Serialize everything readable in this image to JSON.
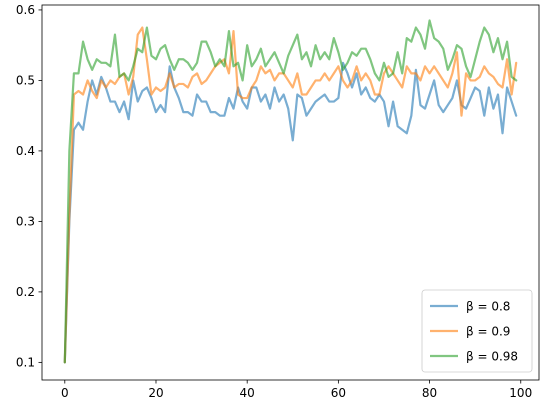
{
  "chart_data": {
    "type": "line",
    "title": "",
    "xlabel": "",
    "ylabel": "",
    "xlim": [
      -5,
      104
    ],
    "ylim": [
      0.075,
      0.607
    ],
    "xticks": [
      0,
      20,
      40,
      60,
      80,
      100
    ],
    "yticks": [
      0.1,
      0.2,
      0.3,
      0.4,
      0.5,
      0.6
    ],
    "xtick_labels": [
      "0",
      "20",
      "40",
      "60",
      "80",
      "100"
    ],
    "ytick_labels": [
      "0.1",
      "0.2",
      "0.3",
      "0.4",
      "0.5",
      "0.6"
    ],
    "grid": false,
    "legend_position": "lower-right",
    "series": [
      {
        "name": "β = 0.8",
        "color": "#1f77b4",
        "x": [
          0,
          1,
          2,
          3,
          4,
          5,
          6,
          7,
          8,
          9,
          10,
          11,
          12,
          13,
          14,
          15,
          16,
          17,
          18,
          19,
          20,
          21,
          22,
          23,
          24,
          25,
          26,
          27,
          28,
          29,
          30,
          31,
          32,
          33,
          34,
          35,
          36,
          37,
          38,
          39,
          40,
          41,
          42,
          43,
          44,
          45,
          46,
          47,
          48,
          49,
          50,
          51,
          52,
          53,
          54,
          55,
          56,
          57,
          58,
          59,
          60,
          61,
          62,
          63,
          64,
          65,
          66,
          67,
          68,
          69,
          70,
          71,
          72,
          73,
          74,
          75,
          76,
          77,
          78,
          79,
          80,
          81,
          82,
          83,
          84,
          85,
          86,
          87,
          88,
          89,
          90,
          91,
          92,
          93,
          94,
          95,
          96,
          97,
          98,
          99
        ],
        "values": [
          0.1,
          0.3,
          0.43,
          0.44,
          0.43,
          0.47,
          0.5,
          0.48,
          0.505,
          0.49,
          0.47,
          0.47,
          0.455,
          0.47,
          0.445,
          0.5,
          0.47,
          0.485,
          0.49,
          0.475,
          0.455,
          0.465,
          0.455,
          0.52,
          0.49,
          0.475,
          0.455,
          0.455,
          0.45,
          0.48,
          0.47,
          0.47,
          0.455,
          0.455,
          0.45,
          0.45,
          0.475,
          0.46,
          0.49,
          0.47,
          0.46,
          0.49,
          0.49,
          0.47,
          0.48,
          0.46,
          0.49,
          0.47,
          0.48,
          0.46,
          0.415,
          0.48,
          0.475,
          0.45,
          0.46,
          0.47,
          0.475,
          0.48,
          0.47,
          0.47,
          0.475,
          0.525,
          0.51,
          0.49,
          0.51,
          0.48,
          0.49,
          0.475,
          0.47,
          0.48,
          0.47,
          0.435,
          0.47,
          0.435,
          0.43,
          0.425,
          0.45,
          0.515,
          0.465,
          0.46,
          0.48,
          0.5,
          0.465,
          0.455,
          0.465,
          0.475,
          0.5,
          0.465,
          0.46,
          0.475,
          0.49,
          0.485,
          0.45,
          0.49,
          0.46,
          0.48,
          0.425,
          0.49,
          0.47,
          0.45
        ]
      },
      {
        "name": "β = 0.9",
        "color": "#ff7f0e",
        "x": [
          0,
          1,
          2,
          3,
          4,
          5,
          6,
          7,
          8,
          9,
          10,
          11,
          12,
          13,
          14,
          15,
          16,
          17,
          18,
          19,
          20,
          21,
          22,
          23,
          24,
          25,
          26,
          27,
          28,
          29,
          30,
          31,
          32,
          33,
          34,
          35,
          36,
          37,
          38,
          39,
          40,
          41,
          42,
          43,
          44,
          45,
          46,
          47,
          48,
          49,
          50,
          51,
          52,
          53,
          54,
          55,
          56,
          57,
          58,
          59,
          60,
          61,
          62,
          63,
          64,
          65,
          66,
          67,
          68,
          69,
          70,
          71,
          72,
          73,
          74,
          75,
          76,
          77,
          78,
          79,
          80,
          81,
          82,
          83,
          84,
          85,
          86,
          87,
          88,
          89,
          90,
          91,
          92,
          93,
          94,
          95,
          96,
          97,
          98,
          99
        ],
        "values": [
          0.1,
          0.31,
          0.48,
          0.485,
          0.48,
          0.5,
          0.485,
          0.475,
          0.5,
          0.49,
          0.5,
          0.495,
          0.505,
          0.51,
          0.48,
          0.505,
          0.565,
          0.575,
          0.53,
          0.48,
          0.49,
          0.485,
          0.49,
          0.51,
          0.49,
          0.495,
          0.495,
          0.49,
          0.505,
          0.51,
          0.495,
          0.5,
          0.51,
          0.52,
          0.525,
          0.53,
          0.51,
          0.57,
          0.48,
          0.475,
          0.475,
          0.49,
          0.5,
          0.52,
          0.51,
          0.515,
          0.5,
          0.51,
          0.51,
          0.5,
          0.49,
          0.51,
          0.48,
          0.48,
          0.49,
          0.5,
          0.5,
          0.51,
          0.5,
          0.51,
          0.52,
          0.5,
          0.49,
          0.5,
          0.52,
          0.5,
          0.51,
          0.5,
          0.48,
          0.48,
          0.51,
          0.52,
          0.51,
          0.5,
          0.49,
          0.52,
          0.51,
          0.51,
          0.5,
          0.52,
          0.51,
          0.52,
          0.51,
          0.5,
          0.49,
          0.51,
          0.54,
          0.45,
          0.51,
          0.5,
          0.5,
          0.505,
          0.52,
          0.51,
          0.505,
          0.495,
          0.49,
          0.53,
          0.48,
          0.525
        ]
      },
      {
        "name": "β = 0.98",
        "color": "#2ca02c",
        "x": [
          0,
          1,
          2,
          3,
          4,
          5,
          6,
          7,
          8,
          9,
          10,
          11,
          12,
          13,
          14,
          15,
          16,
          17,
          18,
          19,
          20,
          21,
          22,
          23,
          24,
          25,
          26,
          27,
          28,
          29,
          30,
          31,
          32,
          33,
          34,
          35,
          36,
          37,
          38,
          39,
          40,
          41,
          42,
          43,
          44,
          45,
          46,
          47,
          48,
          49,
          50,
          51,
          52,
          53,
          54,
          55,
          56,
          57,
          58,
          59,
          60,
          61,
          62,
          63,
          64,
          65,
          66,
          67,
          68,
          69,
          70,
          71,
          72,
          73,
          74,
          75,
          76,
          77,
          78,
          79,
          80,
          81,
          82,
          83,
          84,
          85,
          86,
          87,
          88,
          89,
          90,
          91,
          92,
          93,
          94,
          95,
          96,
          97,
          98,
          99
        ],
        "values": [
          0.1,
          0.4,
          0.51,
          0.51,
          0.555,
          0.53,
          0.515,
          0.53,
          0.525,
          0.525,
          0.52,
          0.565,
          0.505,
          0.51,
          0.5,
          0.52,
          0.545,
          0.54,
          0.575,
          0.535,
          0.53,
          0.545,
          0.55,
          0.53,
          0.515,
          0.53,
          0.53,
          0.525,
          0.515,
          0.525,
          0.555,
          0.555,
          0.54,
          0.52,
          0.53,
          0.52,
          0.57,
          0.52,
          0.525,
          0.5,
          0.55,
          0.52,
          0.53,
          0.545,
          0.52,
          0.53,
          0.54,
          0.525,
          0.51,
          0.535,
          0.55,
          0.565,
          0.53,
          0.54,
          0.52,
          0.55,
          0.53,
          0.54,
          0.53,
          0.56,
          0.54,
          0.515,
          0.525,
          0.54,
          0.535,
          0.545,
          0.545,
          0.53,
          0.51,
          0.5,
          0.525,
          0.505,
          0.51,
          0.54,
          0.51,
          0.56,
          0.555,
          0.575,
          0.565,
          0.545,
          0.585,
          0.56,
          0.555,
          0.545,
          0.515,
          0.53,
          0.55,
          0.545,
          0.52,
          0.505,
          0.53,
          0.555,
          0.575,
          0.565,
          0.54,
          0.56,
          0.53,
          0.555,
          0.505,
          0.5
        ]
      }
    ]
  }
}
